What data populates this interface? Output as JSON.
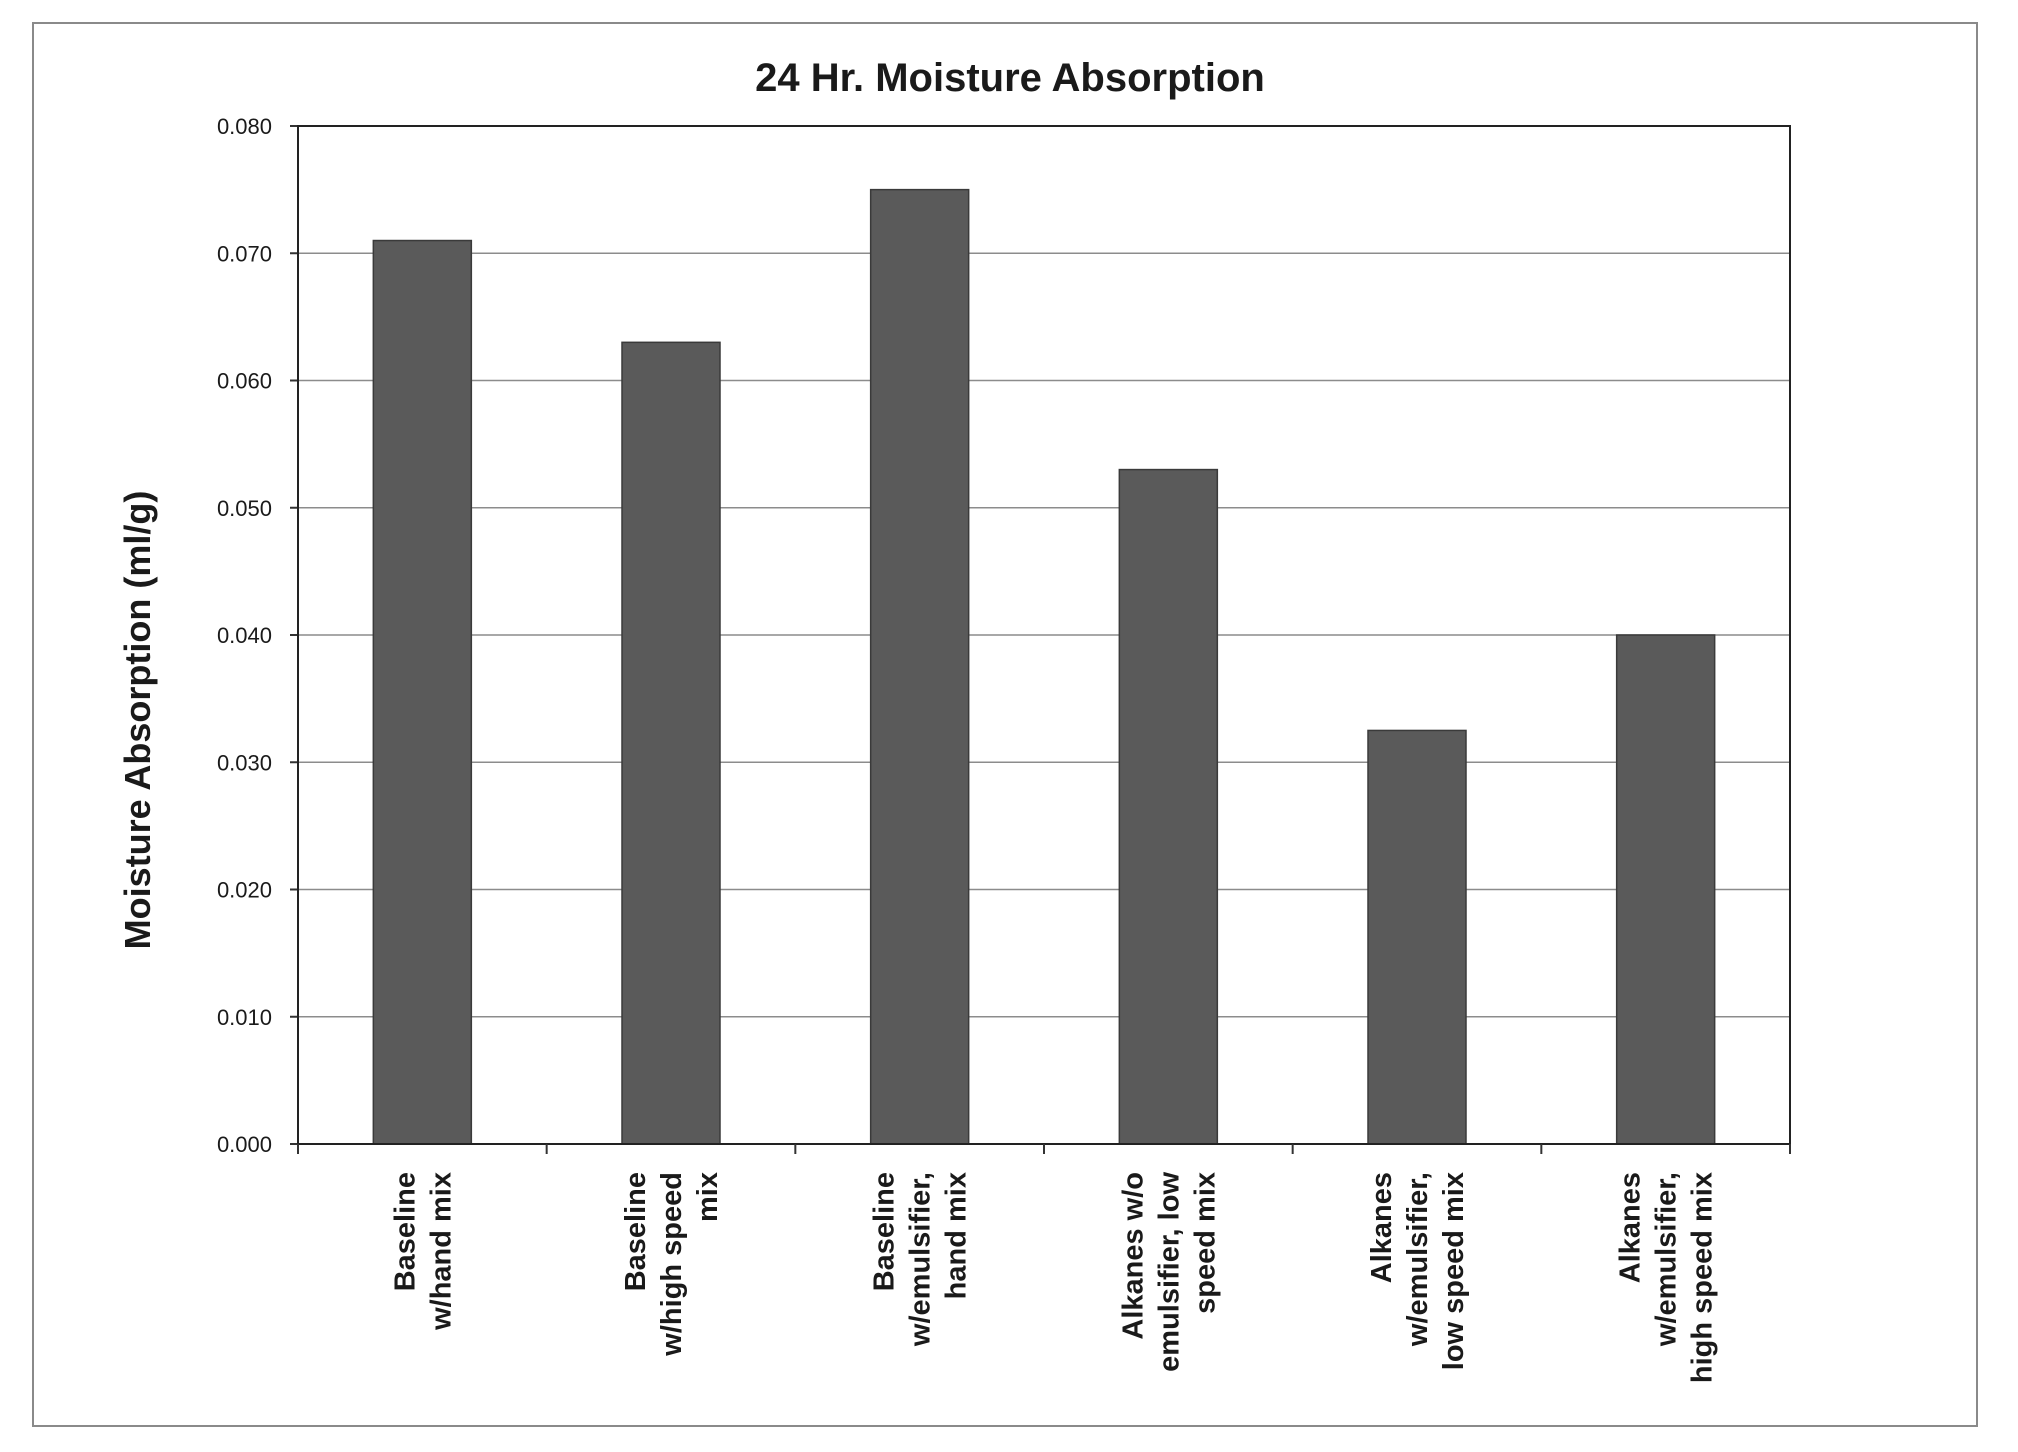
{
  "chart_data": {
    "type": "bar",
    "title": "24 Hr. Moisture Absorption",
    "xlabel": "",
    "ylabel": "Moisture Absorption (ml/g)",
    "ylim": [
      0,
      0.08
    ],
    "yticks": [
      "0.000",
      "0.010",
      "0.020",
      "0.030",
      "0.040",
      "0.050",
      "0.060",
      "0.070",
      "0.080"
    ],
    "grid": true,
    "legend": "none",
    "bar_color": "#5a5a5a",
    "categories": [
      [
        "Baseline",
        "w/hand mix"
      ],
      [
        "Baseline",
        "w/high speed",
        "mix"
      ],
      [
        "Baseline",
        "w/emulsifier,",
        "hand mix"
      ],
      [
        "Alkanes w/o",
        "emulsifier, low",
        "speed mix"
      ],
      [
        "Alkanes",
        "w/emulsifier,",
        "low speed mix"
      ],
      [
        "Alkanes",
        "w/emulsifier,",
        "high speed mix"
      ]
    ],
    "values": [
      0.071,
      0.063,
      0.075,
      0.053,
      0.0325,
      0.04
    ]
  }
}
